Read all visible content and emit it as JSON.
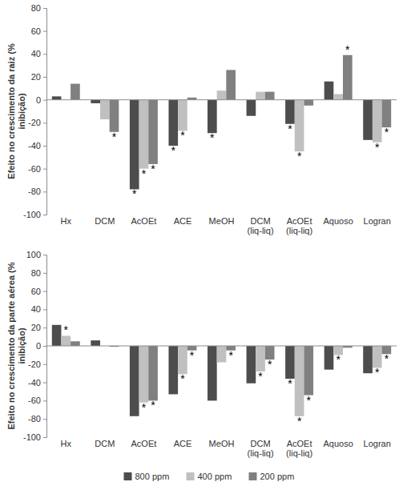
{
  "chart_data": [
    {
      "type": "bar",
      "y_label": "Efeito no crescimento da raiz (% inibição)",
      "categories": [
        "Hx",
        "DCM",
        "AcOEt",
        "ACE",
        "MeOH",
        "DCM (liq-liq)",
        "AcOEt (liq-liq)",
        "Aquoso",
        "Logran"
      ],
      "series": [
        {
          "name": "800 ppm",
          "color": "#4d4d4d",
          "values": [
            3,
            -3,
            -78,
            -40,
            -29,
            -14,
            -21,
            16,
            -35
          ]
        },
        {
          "name": "400 ppm",
          "color": "#c0c0c0",
          "values": [
            0,
            -17,
            -60,
            -27,
            8,
            7,
            -45,
            5,
            -37
          ]
        },
        {
          "name": "200 ppm",
          "color": "#808080",
          "values": [
            14,
            -28,
            -56,
            2,
            26,
            7,
            -5,
            39,
            -24
          ]
        }
      ],
      "ylim": [
        -100,
        80
      ],
      "yticks": [
        -100,
        -80,
        -60,
        -40,
        -20,
        0,
        20,
        40,
        60,
        80
      ],
      "grid": false,
      "annotations": [
        {
          "text": "*",
          "category": 1,
          "series": 2
        },
        {
          "text": "*",
          "category": 2,
          "series": 0
        },
        {
          "text": "*",
          "category": 2,
          "series": 1
        },
        {
          "text": "*",
          "category": 2,
          "series": 2
        },
        {
          "text": "*",
          "category": 3,
          "series": 0
        },
        {
          "text": "*",
          "category": 3,
          "series": 1
        },
        {
          "text": "*",
          "category": 4,
          "series": 0
        },
        {
          "text": "*",
          "category": 6,
          "series": 0
        },
        {
          "text": "*",
          "category": 6,
          "series": 1
        },
        {
          "text": "*",
          "category": 7,
          "series": 2
        },
        {
          "text": "*",
          "category": 8,
          "series": 1
        },
        {
          "text": "*",
          "category": 8,
          "series": 2
        }
      ]
    },
    {
      "type": "bar",
      "y_label": "Efeito no crescimento da parte aérea (% inibição)",
      "categories": [
        "Hx",
        "DCM",
        "AcOEt",
        "ACE",
        "MeOH",
        "DCM (liq-liq)",
        "AcOEt (liq-liq)",
        "Aquoso",
        "Logran"
      ],
      "series": [
        {
          "name": "800 ppm",
          "color": "#4d4d4d",
          "values": [
            23,
            6,
            -77,
            -53,
            -60,
            -41,
            -36,
            -26,
            -30
          ]
        },
        {
          "name": "400 ppm",
          "color": "#c0c0c0",
          "values": [
            11,
            0,
            -62,
            -31,
            -18,
            -28,
            -77,
            -10,
            -24
          ]
        },
        {
          "name": "200 ppm",
          "color": "#808080",
          "values": [
            5,
            -1,
            -60,
            -5,
            -5,
            -15,
            -54,
            -2,
            -9
          ]
        }
      ],
      "ylim": [
        -100,
        100
      ],
      "yticks": [
        -100,
        -80,
        -60,
        -40,
        -20,
        0,
        20,
        40,
        60,
        80,
        100
      ],
      "grid": false,
      "legend": "bottom",
      "annotations": [
        {
          "text": "*",
          "category": 0,
          "series": 1
        },
        {
          "text": "*",
          "category": 2,
          "series": 1
        },
        {
          "text": "*",
          "category": 2,
          "series": 2
        },
        {
          "text": "*",
          "category": 3,
          "series": 1
        },
        {
          "text": "*",
          "category": 3,
          "series": 2
        },
        {
          "text": "*",
          "category": 4,
          "series": 2
        },
        {
          "text": "*",
          "category": 5,
          "series": 1
        },
        {
          "text": "*",
          "category": 5,
          "series": 2
        },
        {
          "text": "*",
          "category": 6,
          "series": 0
        },
        {
          "text": "*",
          "category": 6,
          "series": 1
        },
        {
          "text": "*",
          "category": 6,
          "series": 2
        },
        {
          "text": "*",
          "category": 7,
          "series": 1
        },
        {
          "text": "*",
          "category": 8,
          "series": 1
        },
        {
          "text": "*",
          "category": 8,
          "series": 2
        }
      ]
    }
  ]
}
